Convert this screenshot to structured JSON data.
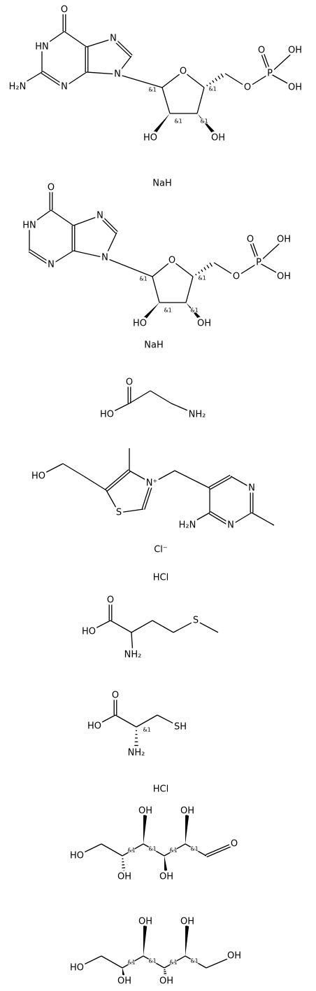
{
  "structures": [
    {
      "labels": [
        "O",
        "HN",
        "H₂N",
        "N",
        "N",
        "N",
        "O",
        "HO",
        "OH",
        "O",
        "P",
        "O",
        "OH",
        "OH",
        "&1",
        "&1",
        "&1",
        "&1",
        "NaH"
      ]
    },
    {
      "labels": [
        "O",
        "HN",
        "N",
        "N",
        "N",
        "O",
        "HO",
        "OH",
        "O",
        "P",
        "O",
        "OH",
        "OH",
        "&1",
        "&1",
        "&1",
        "&1",
        "NaH"
      ]
    },
    {
      "labels": [
        "O",
        "HO",
        "NH₂"
      ]
    },
    {
      "labels": [
        "HO",
        "S",
        "N⁺",
        "H₂N",
        "N",
        "N",
        "Cl⁻",
        "HCl"
      ]
    },
    {
      "labels": [
        "O",
        "HO",
        "NH₂",
        "S"
      ]
    },
    {
      "labels": [
        "O",
        "HO",
        "NH₂",
        "SH",
        "&1",
        "HCl"
      ]
    },
    {
      "labels": [
        "HO",
        "OH",
        "OH",
        "OH",
        "OH",
        "O",
        "&1",
        "&1",
        "&1",
        "&1"
      ]
    },
    {
      "labels": [
        "HO",
        "OH",
        "OH",
        "OH",
        "OH",
        "OH",
        "&1",
        "&1",
        "&1",
        "&1"
      ]
    }
  ]
}
